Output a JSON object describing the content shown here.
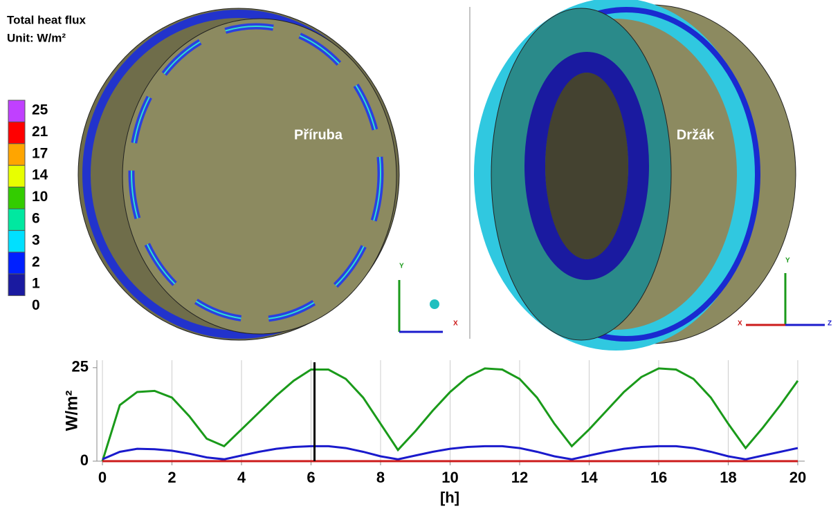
{
  "legend": {
    "title": "Total heat flux",
    "unit": "Unit: W/m²",
    "levels": [
      25,
      21,
      17,
      14,
      10,
      6,
      3,
      2,
      1,
      0
    ],
    "colors": [
      "#c040ff",
      "#ff0000",
      "#ffa500",
      "#e8ff00",
      "#33cc00",
      "#00e8a0",
      "#00e0ff",
      "#0020ff",
      "#1a1aa0",
      "#8c8a60"
    ]
  },
  "parts": {
    "left": "Příruba",
    "right": "Držák"
  },
  "triads": {
    "left": [
      "Y",
      "X"
    ],
    "right": [
      "Y",
      "X",
      "Z"
    ]
  },
  "chart_data": {
    "type": "line",
    "x": [
      0,
      0.5,
      1,
      1.5,
      2,
      2.5,
      3,
      3.5,
      4,
      4.5,
      5,
      5.5,
      6,
      6.5,
      7,
      7.5,
      8,
      8.5,
      9,
      9.5,
      10,
      10.5,
      11,
      11.5,
      12,
      12.5,
      13,
      13.5,
      14,
      14.5,
      15,
      15.5,
      16,
      16.5,
      17,
      17.5,
      18,
      18.5,
      19,
      19.5,
      20
    ],
    "series": [
      {
        "color": "#1a9a1a",
        "values": [
          0,
          15,
          18.5,
          18.8,
          17,
          12,
          6,
          4,
          8.5,
          13,
          17.5,
          21.5,
          24.5,
          24.5,
          22,
          17,
          10,
          3,
          8,
          13.5,
          18.5,
          22.5,
          24.8,
          24.5,
          22,
          17,
          10,
          4,
          8.5,
          13.5,
          18.5,
          22.5,
          24.8,
          24.5,
          22,
          17,
          10,
          3.5,
          9,
          15,
          21.5
        ]
      },
      {
        "color": "#1a1acc",
        "values": [
          0.5,
          2.5,
          3.3,
          3.2,
          2.8,
          2,
          1,
          0.5,
          1.5,
          2.5,
          3.3,
          3.8,
          4,
          4,
          3.5,
          2.5,
          1.3,
          0.5,
          1.5,
          2.5,
          3.3,
          3.8,
          4,
          4,
          3.5,
          2.5,
          1.3,
          0.5,
          1.5,
          2.5,
          3.3,
          3.8,
          4,
          4,
          3.5,
          2.5,
          1.3,
          0.5,
          1.5,
          2.5,
          3.5
        ]
      },
      {
        "color": "#cc1a1a",
        "values": [
          0,
          0,
          0,
          0,
          0,
          0,
          0,
          0,
          0,
          0,
          0,
          0,
          0,
          0,
          0,
          0,
          0,
          0,
          0,
          0,
          0,
          0,
          0,
          0,
          0,
          0,
          0,
          0,
          0,
          0,
          0,
          0,
          0,
          0,
          0,
          0,
          0,
          0,
          0,
          0,
          0
        ]
      }
    ],
    "xlim": [
      -0.16,
      20.2
    ],
    "xticks": [
      0,
      2,
      4,
      6,
      8,
      10,
      12,
      14,
      16,
      18,
      20
    ],
    "ylim": [
      0,
      27
    ],
    "yticks": [
      0,
      25
    ],
    "xlabel": "[h]",
    "ylabel": "W/m²",
    "cursor_x": 6.1,
    "grid": true
  }
}
